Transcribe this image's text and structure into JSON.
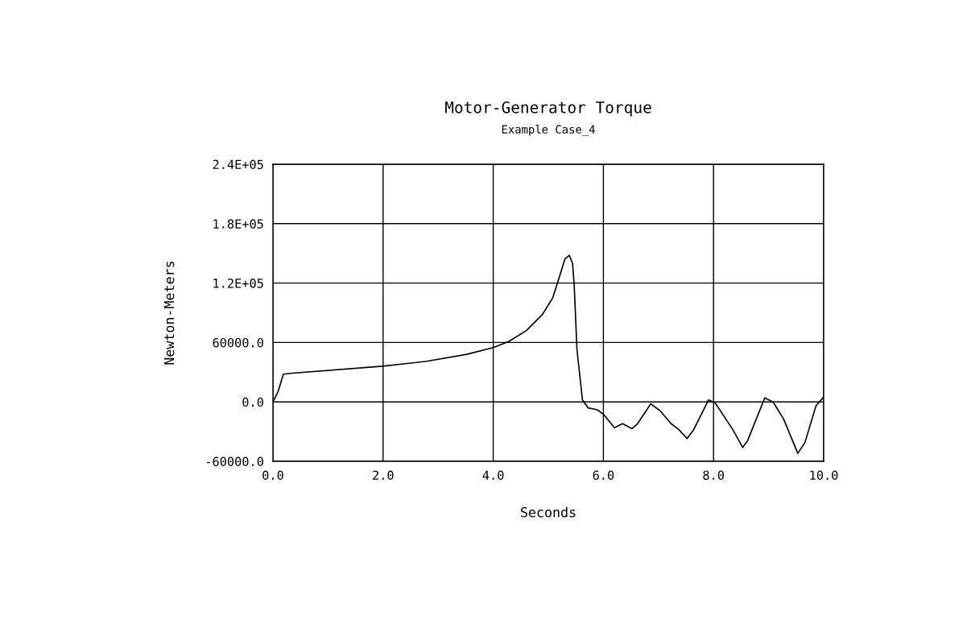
{
  "chart_data": {
    "type": "line",
    "title": "Motor-Generator Torque",
    "subtitle": "Example Case_4",
    "xlabel": "Seconds",
    "ylabel": "Newton-Meters",
    "xlim": [
      0,
      10
    ],
    "ylim": [
      -60000,
      240000
    ],
    "xticks": [
      {
        "value": 0,
        "label": "0.0"
      },
      {
        "value": 2,
        "label": "2.0"
      },
      {
        "value": 4,
        "label": "4.0"
      },
      {
        "value": 6,
        "label": "6.0"
      },
      {
        "value": 8,
        "label": "8.0"
      },
      {
        "value": 10,
        "label": "10.0"
      }
    ],
    "yticks": [
      {
        "value": -60000,
        "label": "-60000.0"
      },
      {
        "value": 0,
        "label": "0.0"
      },
      {
        "value": 60000,
        "label": "60000.0"
      },
      {
        "value": 120000,
        "label": "1.2E+05"
      },
      {
        "value": 180000,
        "label": "1.8E+05"
      },
      {
        "value": 240000,
        "label": "2.4E+05"
      }
    ],
    "grid": true,
    "marker": "none",
    "line_style": "solid",
    "series": [
      {
        "color": "#000000",
        "x": [
          0,
          0.09,
          0.19,
          0.36,
          1.99,
          2.79,
          3.52,
          4.01,
          4.28,
          4.6,
          4.89,
          5.08,
          5.2,
          5.3,
          5.38,
          5.44,
          5.47,
          5.52,
          5.62,
          5.72,
          5.89,
          6.01,
          6.2,
          6.35,
          6.52,
          6.62,
          6.86,
          7.03,
          7.23,
          7.37,
          7.52,
          7.64,
          7.91,
          8.03,
          8.35,
          8.53,
          8.62,
          8.93,
          9.08,
          9.27,
          9.53,
          9.66,
          9.86,
          10.0
        ],
        "values": [
          0,
          10000,
          28000,
          29000,
          36000,
          41000,
          48000,
          55000,
          61000,
          72000,
          88000,
          105000,
          126000,
          144000,
          148000,
          140000,
          118000,
          53000,
          2000,
          -6000,
          -8000,
          -13000,
          -26000,
          -22000,
          -27000,
          -22000,
          -2000,
          -9000,
          -22000,
          -28000,
          -37000,
          -28000,
          2000,
          -1000,
          -28000,
          -46000,
          -39000,
          4000,
          0,
          -17000,
          -52000,
          -41000,
          -4000,
          5000
        ]
      }
    ]
  }
}
